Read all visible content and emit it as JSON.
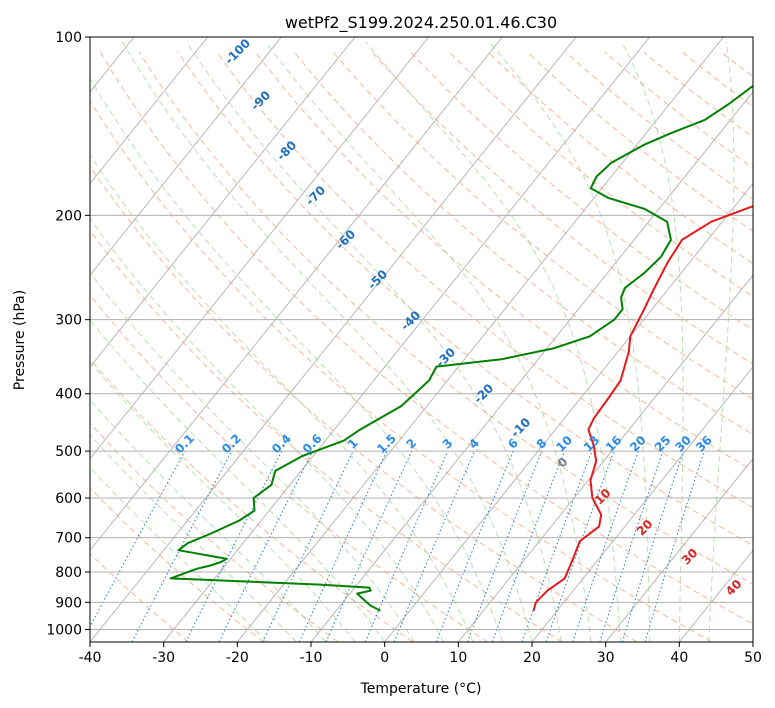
{
  "chart_data": {
    "type": "line",
    "title": "wetPf2_S199.2024.250.01.46.C30",
    "xlabel": "Temperature (°C)",
    "ylabel": "Pressure (hPa)",
    "xlim": [
      -40,
      50
    ],
    "ylim": [
      1050,
      100
    ],
    "y_scale": "log",
    "x_ticks": [
      -40,
      -30,
      -20,
      -10,
      0,
      10,
      20,
      30,
      40,
      50
    ],
    "y_ticks": [
      100,
      200,
      300,
      400,
      500,
      600,
      700,
      800,
      900,
      1000
    ],
    "grid": true,
    "series": [
      {
        "kind": "temperature",
        "color": "#e41a1c",
        "points": [
          [
            16.8,
            930
          ],
          [
            16.2,
            900
          ],
          [
            16.5,
            860
          ],
          [
            17.5,
            820
          ],
          [
            16.5,
            760
          ],
          [
            15.5,
            710
          ],
          [
            16.5,
            670
          ],
          [
            15.5,
            640
          ],
          [
            12.5,
            600
          ],
          [
            10.3,
            560
          ],
          [
            9.0,
            520
          ],
          [
            7.0,
            490
          ],
          [
            4.5,
            460
          ],
          [
            4.0,
            440
          ],
          [
            3.8,
            410
          ],
          [
            3.5,
            380
          ],
          [
            1.5,
            340
          ],
          [
            0.0,
            320
          ],
          [
            -1.0,
            290
          ],
          [
            -2.0,
            265
          ],
          [
            -3.0,
            240
          ],
          [
            -3.5,
            220
          ],
          [
            -1.5,
            205
          ],
          [
            3.5,
            190
          ],
          [
            9.0,
            175
          ],
          [
            12.5,
            160
          ],
          [
            14.5,
            150
          ],
          [
            15.0,
            140
          ],
          [
            15.2,
            130
          ],
          [
            16.0,
            122
          ],
          [
            18.0,
            115
          ],
          [
            21.0,
            108
          ],
          [
            22.5,
            103
          ],
          [
            22.5,
            100
          ]
        ]
      },
      {
        "kind": "dewpoint",
        "color": "#008000",
        "points": [
          [
            -4.0,
            930
          ],
          [
            -6.0,
            910
          ],
          [
            -7.5,
            890
          ],
          [
            -9.0,
            870
          ],
          [
            -7.5,
            860
          ],
          [
            -8.0,
            850
          ],
          [
            -15.0,
            840
          ],
          [
            -36.0,
            820
          ],
          [
            -33.5,
            790
          ],
          [
            -32.0,
            780
          ],
          [
            -31.0,
            770
          ],
          [
            -30.5,
            760
          ],
          [
            -32.0,
            755
          ],
          [
            -38.0,
            735
          ],
          [
            -37.5,
            715
          ],
          [
            -35.5,
            690
          ],
          [
            -33.0,
            655
          ],
          [
            -32.0,
            630
          ],
          [
            -33.5,
            600
          ],
          [
            -32.5,
            570
          ],
          [
            -33.5,
            540
          ],
          [
            -31.5,
            510
          ],
          [
            -27.5,
            480
          ],
          [
            -26.5,
            460
          ],
          [
            -23.5,
            420
          ],
          [
            -23.0,
            400
          ],
          [
            -22.5,
            380
          ],
          [
            -23.0,
            360
          ],
          [
            -15.0,
            350
          ],
          [
            -9.0,
            335
          ],
          [
            -5.5,
            320
          ],
          [
            -4.0,
            300
          ],
          [
            -4.0,
            288
          ],
          [
            -5.5,
            275
          ],
          [
            -6.0,
            265
          ],
          [
            -5.0,
            250
          ],
          [
            -4.5,
            235
          ],
          [
            -5.0,
            220
          ],
          [
            -7.5,
            205
          ],
          [
            -12.0,
            195
          ],
          [
            -18.0,
            187
          ],
          [
            -21.5,
            180
          ],
          [
            -22.0,
            172
          ],
          [
            -21.5,
            163
          ],
          [
            -19.0,
            152
          ],
          [
            -16.5,
            145
          ],
          [
            -13.5,
            138
          ],
          [
            -12.0,
            130
          ],
          [
            -10.5,
            120
          ],
          [
            -8.0,
            112
          ],
          [
            -5.5,
            105
          ],
          [
            -1.5,
            100
          ]
        ]
      }
    ],
    "dry_adiabat_labels": [
      "-100",
      "-90",
      "-80",
      "-70",
      "-60",
      "-50",
      "-40",
      "-30",
      "-20",
      "-10",
      "0",
      "10",
      "20",
      "30",
      "40"
    ],
    "mixing_ratio_labels": [
      "0.1",
      "0.2",
      "0.4",
      "0.6",
      "1",
      "1.5",
      "2",
      "3",
      "4",
      "6",
      "8",
      "10",
      "13",
      "16",
      "20",
      "25",
      "30",
      "36"
    ],
    "colors": {
      "isotherm": "#b0b0b0",
      "dry_adiabat": "#f4a582",
      "moist_adiabat": "#a6d8a0",
      "mixing_ratio": "#1f78d4",
      "adiabat_label_blue": "#1f6fbf",
      "adiabat_label_red": "#d62728",
      "adiabat_label_gray": "#808080"
    }
  }
}
